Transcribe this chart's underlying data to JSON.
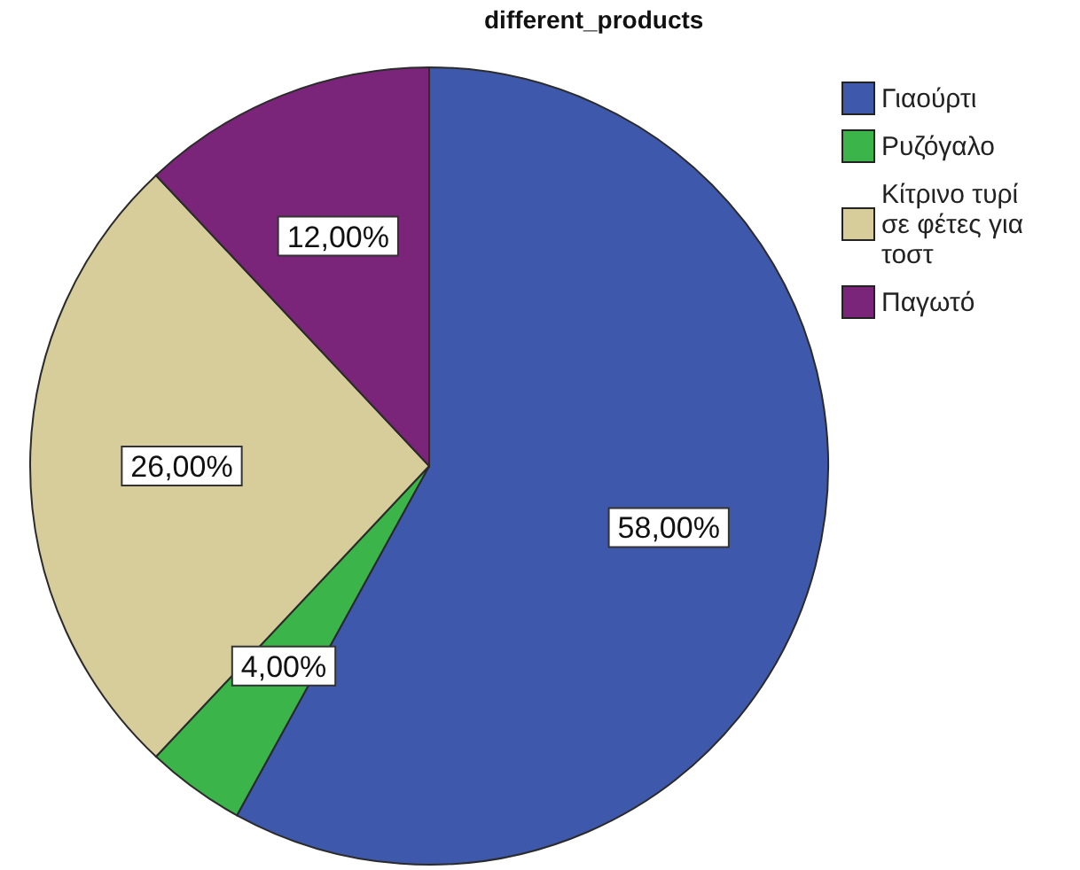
{
  "chart_data": {
    "type": "pie",
    "title": "different_products",
    "categories": [
      "Γιαούρτι",
      "Ρυζόγαλο",
      "Κίτρινο τυρί σε φέτες για τοστ",
      "Παγωτό"
    ],
    "values": [
      58,
      4,
      26,
      12
    ],
    "colors": [
      "#3e58ab",
      "#3bb54a",
      "#d6cd9b",
      "#7b257a"
    ],
    "value_labels": [
      "58,00%",
      "4,00%",
      "26,00%",
      "12,00%"
    ],
    "legend": "top right"
  }
}
